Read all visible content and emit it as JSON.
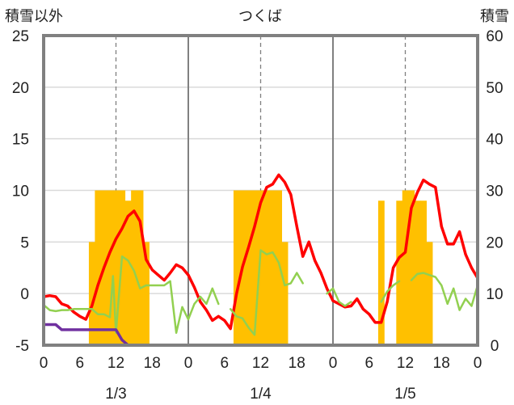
{
  "chart_data": {
    "type": "combo",
    "title": "つくば",
    "left_axis_label": "積雪以外",
    "right_axis_label": "積雪",
    "y_left": {
      "min": -5,
      "max": 25,
      "ticks": [
        -5,
        0,
        5,
        10,
        15,
        20,
        25
      ]
    },
    "y_right": {
      "min": 0,
      "max": 60,
      "ticks": [
        0,
        10,
        20,
        30,
        40,
        50,
        60
      ]
    },
    "x": {
      "min": 0,
      "max": 72,
      "unit": "hour",
      "tick_hours": [
        0,
        6,
        12,
        18,
        24,
        30,
        36,
        42,
        48,
        54,
        60,
        66,
        72
      ],
      "tick_labels": [
        "0",
        "6",
        "12",
        "18",
        "0",
        "6",
        "12",
        "18",
        "0",
        "6",
        "12",
        "18",
        "0"
      ]
    },
    "dates": [
      {
        "label": "1/3",
        "hour": 12
      },
      {
        "label": "1/4",
        "hour": 36
      },
      {
        "label": "1/5",
        "hour": 60
      }
    ],
    "day_dividers": [
      24,
      48
    ],
    "dashed_guides": [
      12,
      36,
      60
    ],
    "colors": {
      "snow_depth": "#ffc000",
      "red_line": "#ff0000",
      "green_line": "#92d050",
      "purple_line": "#7030a0",
      "frame": "#808080"
    },
    "series": [
      {
        "type": "bar",
        "axis": "right",
        "color": "#ffc000",
        "points": [
          [
            8,
            20
          ],
          [
            9,
            30
          ],
          [
            10,
            30
          ],
          [
            11,
            30
          ],
          [
            12,
            30
          ],
          [
            13,
            30
          ],
          [
            14,
            28
          ],
          [
            15,
            30
          ],
          [
            16,
            30
          ],
          [
            17,
            20
          ],
          [
            32,
            30
          ],
          [
            33,
            30
          ],
          [
            34,
            30
          ],
          [
            35,
            30
          ],
          [
            36,
            30
          ],
          [
            37,
            30
          ],
          [
            38,
            30
          ],
          [
            39,
            30
          ],
          [
            40,
            20
          ],
          [
            56,
            28
          ],
          [
            57,
            0
          ],
          [
            58,
            0
          ],
          [
            59,
            28
          ],
          [
            60,
            30
          ],
          [
            61,
            30
          ],
          [
            62,
            28
          ],
          [
            63,
            28
          ],
          [
            64,
            20
          ]
        ]
      },
      {
        "type": "line",
        "axis": "left",
        "color": "#ff0000",
        "points": [
          [
            0,
            -0.3
          ],
          [
            1,
            -0.2
          ],
          [
            2,
            -0.3
          ],
          [
            3,
            -1
          ],
          [
            4,
            -1.2
          ],
          [
            5,
            -1.8
          ],
          [
            6,
            -2.2
          ],
          [
            7,
            -2.5
          ],
          [
            8,
            -1.2
          ],
          [
            9,
            0.8
          ],
          [
            10,
            2.5
          ],
          [
            11,
            4
          ],
          [
            12,
            5.3
          ],
          [
            13,
            6.3
          ],
          [
            14,
            7.5
          ],
          [
            15,
            8
          ],
          [
            16,
            7
          ],
          [
            17,
            3.3
          ],
          [
            18,
            2.3
          ],
          [
            19,
            1.8
          ],
          [
            20,
            1.3
          ],
          [
            21,
            2
          ],
          [
            22,
            2.8
          ],
          [
            23,
            2.5
          ],
          [
            24,
            1.8
          ],
          [
            25,
            0.6
          ],
          [
            26,
            -0.8
          ],
          [
            27,
            -1.6
          ],
          [
            28,
            -2.6
          ],
          [
            29,
            -2.2
          ],
          [
            30,
            -2.6
          ],
          [
            31,
            -3.4
          ],
          [
            32,
            0
          ],
          [
            33,
            2.6
          ],
          [
            34,
            4.5
          ],
          [
            35,
            6.5
          ],
          [
            36,
            8.8
          ],
          [
            37,
            10.3
          ],
          [
            38,
            10.6
          ],
          [
            39,
            11.5
          ],
          [
            40,
            10.8
          ],
          [
            41,
            9.6
          ],
          [
            42,
            6.5
          ],
          [
            43,
            3.6
          ],
          [
            44,
            5
          ],
          [
            45,
            3.2
          ],
          [
            46,
            2
          ],
          [
            47,
            0.5
          ],
          [
            48,
            -0.7
          ],
          [
            49,
            -1
          ],
          [
            50,
            -1.3
          ],
          [
            51,
            -1.2
          ],
          [
            52,
            -0.5
          ],
          [
            53,
            -1.5
          ],
          [
            54,
            -2
          ],
          [
            55,
            -2.8
          ],
          [
            56,
            -2.8
          ],
          [
            57,
            -0.8
          ],
          [
            58,
            2.5
          ],
          [
            59,
            3.5
          ],
          [
            60,
            4
          ],
          [
            61,
            8.3
          ],
          [
            62,
            9.8
          ],
          [
            63,
            11
          ],
          [
            64,
            10.6
          ],
          [
            65,
            10.3
          ],
          [
            66,
            6.5
          ],
          [
            67,
            4.8
          ],
          [
            68,
            4.8
          ],
          [
            69,
            6
          ],
          [
            70,
            3.8
          ],
          [
            71,
            2.5
          ],
          [
            72,
            1.5
          ]
        ]
      },
      {
        "type": "line",
        "axis": "left",
        "color": "#92d050",
        "segments": [
          [
            [
              0,
              -1.1
            ],
            [
              1,
              -1.6
            ],
            [
              2,
              -1.7
            ],
            [
              3,
              -1.6
            ],
            [
              4,
              -1.6
            ],
            [
              5,
              -1.5
            ],
            [
              6,
              -1.5
            ],
            [
              7,
              -1.5
            ],
            [
              8,
              -1.5
            ],
            [
              9,
              -2
            ],
            [
              10,
              -2
            ],
            [
              11,
              -2.3
            ],
            [
              11.5,
              1.7
            ],
            [
              12,
              -3.8
            ],
            [
              13,
              3.6
            ],
            [
              14,
              3.2
            ],
            [
              15,
              2.2
            ],
            [
              16,
              0.5
            ],
            [
              17,
              0.8
            ],
            [
              18,
              0.8
            ],
            [
              19,
              0.8
            ],
            [
              20,
              0.8
            ],
            [
              21,
              1.2
            ],
            [
              22,
              -3.8
            ],
            [
              23,
              -1.3
            ],
            [
              24,
              -2.5
            ],
            [
              25,
              -1
            ],
            [
              26,
              -0.3
            ],
            [
              27,
              -1
            ],
            [
              28,
              0.5
            ],
            [
              29,
              -1
            ]
          ],
          [
            [
              31,
              -1.5
            ],
            [
              32,
              -2.2
            ],
            [
              33,
              -2.4
            ],
            [
              34,
              -3.3
            ],
            [
              35,
              -4
            ],
            [
              36,
              4.2
            ],
            [
              37,
              3.8
            ],
            [
              38,
              4
            ],
            [
              39,
              3
            ],
            [
              40,
              0.8
            ],
            [
              41,
              1
            ],
            [
              42,
              2
            ],
            [
              43,
              1
            ]
          ],
          [
            [
              47,
              0
            ],
            [
              48,
              0.5
            ],
            [
              49,
              -0.8
            ],
            [
              50,
              -1.2
            ],
            [
              51,
              -0.8
            ]
          ],
          [
            [
              56,
              -0.8
            ],
            [
              57,
              0.2
            ],
            [
              58,
              0.8
            ],
            [
              59,
              1.2
            ]
          ],
          [
            [
              61,
              1.3
            ],
            [
              62,
              1.9
            ],
            [
              63,
              2
            ],
            [
              64,
              1.8
            ],
            [
              65,
              1.6
            ],
            [
              66,
              0.8
            ],
            [
              67,
              -1
            ],
            [
              68,
              0.5
            ],
            [
              69,
              -1.6
            ],
            [
              70,
              -0.5
            ],
            [
              71,
              -1.2
            ],
            [
              72,
              0.8
            ]
          ]
        ]
      },
      {
        "type": "line",
        "axis": "left",
        "color": "#7030a0",
        "points": [
          [
            0,
            -3
          ],
          [
            2,
            -3
          ],
          [
            3,
            -3.5
          ],
          [
            10,
            -3.5
          ],
          [
            12,
            -3.5
          ],
          [
            13,
            -4.5
          ],
          [
            14,
            -5
          ],
          [
            72,
            -5
          ]
        ]
      }
    ]
  }
}
